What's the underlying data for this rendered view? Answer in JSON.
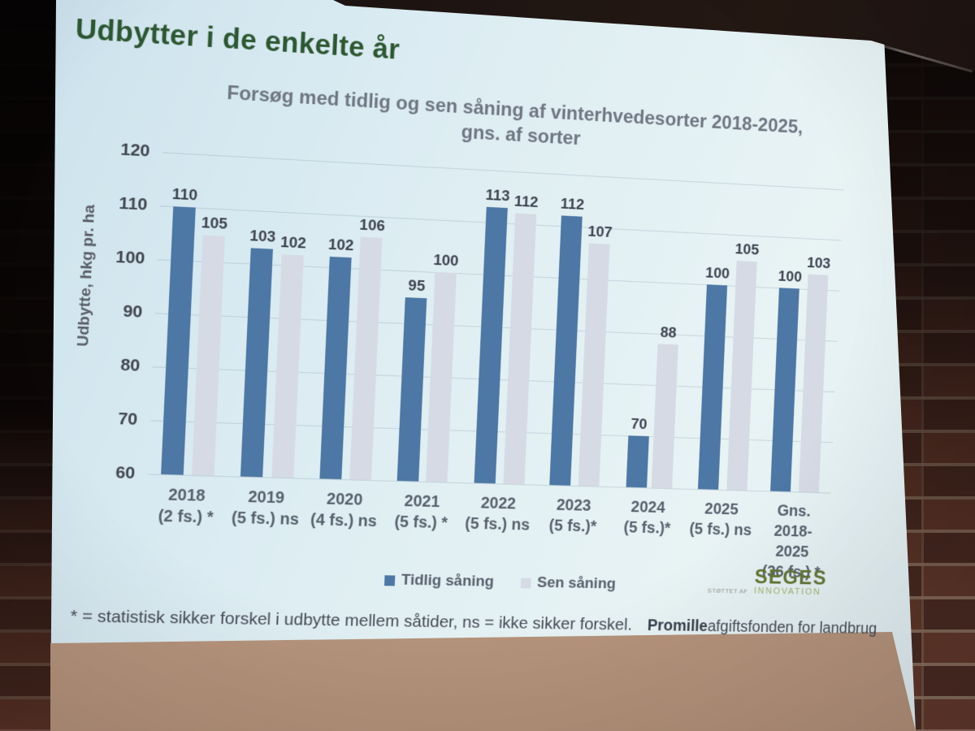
{
  "slide": {
    "title": "Udbytter i de enkelte år",
    "chart_title_line1": "Forsøg med tidlig og sen såning af vinterhvedesorter 2018-2025,",
    "chart_title_line2": "gns. af sorter",
    "footnote": "* = statistisk sikker forskel i udbytte mellem såtider, ns = ikke sikker forskel.",
    "sponsor": {
      "bold": "Promille",
      "rest": "afgiftsfonden for landbrug"
    },
    "logo": {
      "supported_by": "STØTTET AF",
      "name": "SEGES",
      "subname": "INNOVATION"
    }
  },
  "chart_data": {
    "type": "bar",
    "title": "Forsøg med tidlig og sen såning af vinterhvedesorter 2018-2025, gns. af sorter",
    "xlabel": "",
    "ylabel": "Udbytte, hkg pr. ha",
    "ylim": [
      60,
      120
    ],
    "yticks": [
      60,
      70,
      80,
      90,
      100,
      110,
      120
    ],
    "grid": true,
    "legend_position": "bottom-center",
    "categories": [
      [
        "2018",
        "(2 fs.) *"
      ],
      [
        "2019",
        "(5 fs.) ns"
      ],
      [
        "2020",
        "(4 fs.) ns"
      ],
      [
        "2021",
        "(5 fs.) *"
      ],
      [
        "2022",
        "(5 fs.) ns"
      ],
      [
        "2023",
        "(5 fs.)*"
      ],
      [
        "2024",
        "(5 fs.)*"
      ],
      [
        "2025",
        "(5 fs.) ns"
      ],
      [
        "Gns. 2018-",
        "2025",
        "(36 fs.) *"
      ]
    ],
    "series": [
      {
        "name": "Tidlig såning",
        "color": "#4d77a4",
        "values": [
          110,
          103,
          102,
          95,
          113,
          112,
          70,
          100,
          100
        ]
      },
      {
        "name": "Sen såning",
        "color": "#d5dae4",
        "values": [
          105,
          102,
          106,
          100,
          112,
          107,
          88,
          105,
          103
        ]
      }
    ]
  },
  "colors": {
    "slide_title": "#2d5732",
    "chart_title": "#6f7683",
    "bar_early": "#4d77a4",
    "bar_late": "#d5dae4",
    "seges_green": "#647637",
    "seges_light_green": "#a2b56c"
  }
}
